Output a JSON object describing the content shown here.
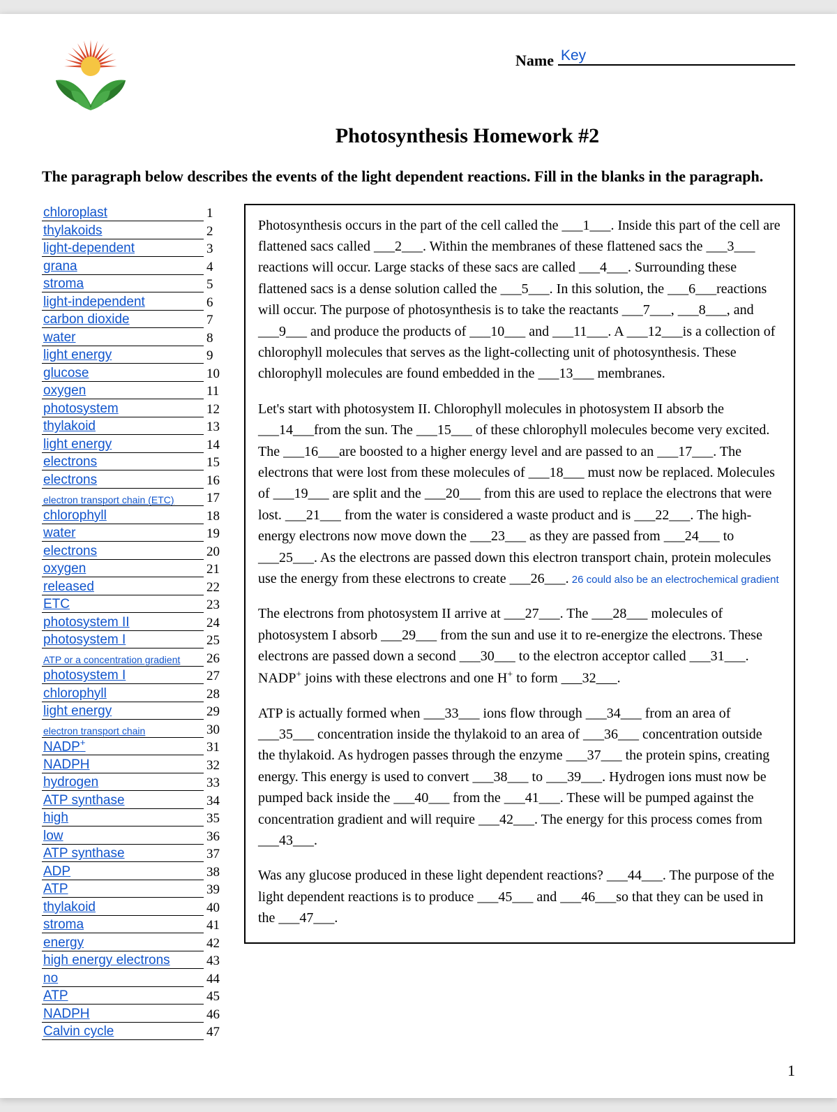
{
  "header": {
    "name_label": "Name",
    "name_value": "Key",
    "title": "Photosynthesis Homework #2",
    "instructions": "The paragraph below describes the events of the light dependent reactions.  Fill in the blanks in the paragraph."
  },
  "answers": [
    {
      "n": 1,
      "t": "chloroplast"
    },
    {
      "n": 2,
      "t": "thylakoids"
    },
    {
      "n": 3,
      "t": "light-dependent"
    },
    {
      "n": 4,
      "t": "grana"
    },
    {
      "n": 5,
      "t": "stroma"
    },
    {
      "n": 6,
      "t": "light-independent"
    },
    {
      "n": 7,
      "t": "carbon dioxide"
    },
    {
      "n": 8,
      "t": "water"
    },
    {
      "n": 9,
      "t": "light energy"
    },
    {
      "n": 10,
      "t": "glucose"
    },
    {
      "n": 11,
      "t": "oxygen"
    },
    {
      "n": 12,
      "t": "photosystem"
    },
    {
      "n": 13,
      "t": "thylakoid"
    },
    {
      "n": 14,
      "t": "light energy"
    },
    {
      "n": 15,
      "t": "electrons"
    },
    {
      "n": 16,
      "t": "electrons"
    },
    {
      "n": 17,
      "t": "electron transport chain (ETC)",
      "small": true
    },
    {
      "n": 18,
      "t": "chlorophyll"
    },
    {
      "n": 19,
      "t": "water"
    },
    {
      "n": 20,
      "t": "electrons"
    },
    {
      "n": 21,
      "t": "oxygen"
    },
    {
      "n": 22,
      "t": "released"
    },
    {
      "n": 23,
      "t": "ETC"
    },
    {
      "n": 24,
      "t": "photosystem II"
    },
    {
      "n": 25,
      "t": "photosystem I"
    },
    {
      "n": 26,
      "t": "ATP or a concentration gradient",
      "small": true
    },
    {
      "n": 27,
      "t": "photosystem I"
    },
    {
      "n": 28,
      "t": "chlorophyll"
    },
    {
      "n": 29,
      "t": "light energy"
    },
    {
      "n": 30,
      "t": "electron transport chain",
      "small": true
    },
    {
      "n": 31,
      "t": "NADP+",
      "sup": "+"
    },
    {
      "n": 32,
      "t": "NADPH"
    },
    {
      "n": 33,
      "t": "hydrogen"
    },
    {
      "n": 34,
      "t": "ATP synthase"
    },
    {
      "n": 35,
      "t": "high"
    },
    {
      "n": 36,
      "t": "low"
    },
    {
      "n": 37,
      "t": "ATP synthase"
    },
    {
      "n": 38,
      "t": "ADP"
    },
    {
      "n": 39,
      "t": "ATP"
    },
    {
      "n": 40,
      "t": "thylakoid"
    },
    {
      "n": 41,
      "t": "stroma"
    },
    {
      "n": 42,
      "t": "energy"
    },
    {
      "n": 43,
      "t": "high energy electrons"
    },
    {
      "n": 44,
      "t": "no"
    },
    {
      "n": 45,
      "t": "ATP"
    },
    {
      "n": 46,
      "t": "NADPH"
    },
    {
      "n": 47,
      "t": "Calvin cycle"
    }
  ],
  "passage": {
    "p1": "Photosynthesis occurs in the part of the cell called the ___1___.  Inside this part of the cell are flattened sacs called ___2___.  Within the membranes of these flattened sacs the ___3___ reactions will occur.   Large stacks of these sacs are called ___4___.  Surrounding these flattened sacs is a dense solution called the ___5___.  In this solution, the ___6___reactions will occur.   The purpose of photosynthesis is to take the reactants ___7___, ___8___, and ___9___ and produce the products of ___10___ and ___11___.  A ___12___is a collection of chlorophyll molecules that serves as the light-collecting unit of photosynthesis.  These chlorophyll molecules are found embedded in the ___13___ membranes.",
    "p2": "Let's start with photosystem II.  Chlorophyll molecules in photosystem II absorb the ___14___from the sun.  The ___15___ of these chlorophyll molecules become very excited.  The ___16___are boosted to a higher energy level and are passed to an ___17___.  The electrons that were lost from these molecules of ___18___ must now be replaced.   Molecules of ___19___ are split and the ___20___ from this are used to replace the electrons that were lost.  ___21___ from the water is considered a waste product and is ___22___.  The high-energy electrons now move down the ___23___ as they are passed from ___24___ to ___25___.   As the electrons are passed down this electron transport chain, protein molecules use the energy from these electrons to create ___26___.",
    "p2_note": " 26 could also be an electrochemical gradient",
    "p3a": "The electrons from photosystem II arrive at ___27___.  The ___28___ molecules of photosystem I absorb ___29___ from the sun and use it to re-energize the electrons.  These electrons are passed down a second ___30___ to the electron acceptor called ___31___.   NADP",
    "p3b": " joins with these electrons and one H",
    "p3c": " to form ___32___.",
    "p4": "ATP is actually formed when ___33___ ions flow through ___34___ from an area of ___35___ concentration inside the thylakoid to an area of ___36___ concentration outside the thylakoid.  As hydrogen passes through the enzyme ___37___ the protein spins, creating energy.  This energy is used to convert ___38___ to ___39___.  Hydrogen ions must now be pumped back inside the ___40___ from the ___41___.  These will be pumped against the concentration gradient and will require ___42___.   The energy for this process comes from ___43___.",
    "p5": "Was any glucose produced in these light dependent reactions?  ___44___.   The purpose of the light dependent reactions is to produce ___45___ and ___46___so that they can be used in the ___47___."
  },
  "page_number": "1",
  "logo": {
    "sun_color": "#d94a2b",
    "sun_center": "#f5c542",
    "leaf_color": "#3a9b3a",
    "leaf_dark": "#2a7a2a"
  }
}
